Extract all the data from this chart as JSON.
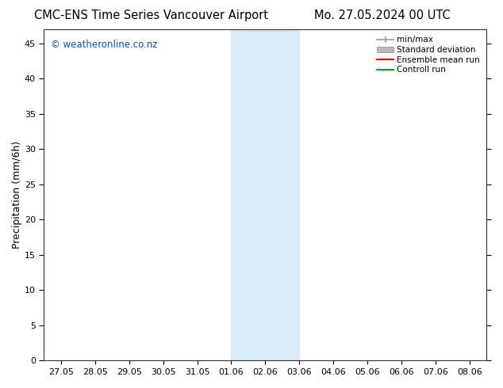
{
  "title_left": "CMC-ENS Time Series Vancouver Airport",
  "title_right": "Mo. 27.05.2024 00 UTC",
  "ylabel": "Precipitation (mm/6h)",
  "xlim": [
    -0.5,
    12.5
  ],
  "ylim": [
    0,
    47
  ],
  "yticks": [
    0,
    5,
    10,
    15,
    20,
    25,
    30,
    35,
    40,
    45
  ],
  "xtick_labels": [
    "27.05",
    "28.05",
    "29.05",
    "30.05",
    "31.05",
    "01.06",
    "02.06",
    "03.06",
    "04.06",
    "05.06",
    "06.06",
    "07.06",
    "08.06"
  ],
  "xtick_positions": [
    0,
    1,
    2,
    3,
    4,
    5,
    6,
    7,
    8,
    9,
    10,
    11,
    12
  ],
  "shaded_region_start": 5,
  "shaded_region_end": 7,
  "shaded_color": "#daeaf7",
  "watermark_text": "© weatheronline.co.nz",
  "watermark_color": "#0055cc",
  "background_color": "#ffffff",
  "legend_labels": [
    "min/max",
    "Standard deviation",
    "Ensemble mean run",
    "Controll run"
  ],
  "legend_line_colors": [
    "#999999",
    "#bbbbbb",
    "#ff0000",
    "#00aa00"
  ],
  "title_fontsize": 10.5,
  "tick_fontsize": 8,
  "ylabel_fontsize": 9,
  "watermark_fontsize": 8.5
}
